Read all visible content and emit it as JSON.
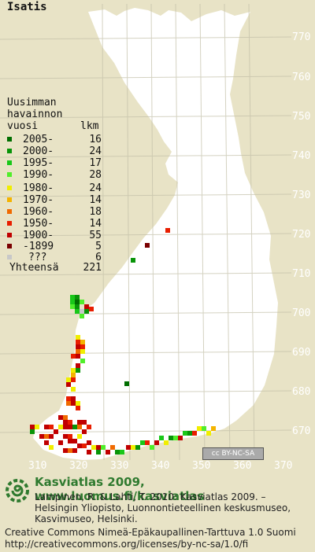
{
  "species": "Isatis",
  "map": {
    "latitude_labels": [
      "770",
      "760",
      "750",
      "740",
      "730",
      "720",
      "710",
      "700",
      "690",
      "680",
      "670"
    ],
    "longitude_labels": [
      "310",
      "320",
      "330",
      "340",
      "350",
      "360",
      "370"
    ]
  },
  "legend": {
    "title_lines": [
      "Uusimman",
      "havainnon",
      "vuosi"
    ],
    "count_header": "lkm",
    "rows": [
      {
        "period": "2005-",
        "count": "16",
        "color": "#006e00"
      },
      {
        "period": "2000-",
        "count": "24",
        "color": "#089408"
      },
      {
        "period": "1995-",
        "count": "17",
        "color": "#19c819"
      },
      {
        "period": "1990-",
        "count": "28",
        "color": "#50ee2a"
      },
      {
        "period": "1980-",
        "count": "24",
        "color": "#f0ee00"
      },
      {
        "period": "1970-",
        "count": "14",
        "color": "#f4b400"
      },
      {
        "period": "1960-",
        "count": "18",
        "color": "#f06a00"
      },
      {
        "period": "1950-",
        "count": "14",
        "color": "#e81e00"
      },
      {
        "period": "1900-",
        "count": "55",
        "color": "#c00000"
      },
      {
        "period": "-1899",
        "count": "5",
        "color": "#7a0000"
      },
      {
        "period": "???",
        "count": "6",
        "color": "#c8c8c8"
      }
    ],
    "total_label": "Yhteensä",
    "total_count": "221"
  },
  "license_badge": "cc BY-NC-SA",
  "footer": {
    "title": "Kasviatlas 2009, www.luomus.fi/kasviatlas",
    "citation_lines": [
      "Lampinen, R. & Lahti, T. 2010: Kasviatlas 2009. –",
      "Helsingin Yliopisto, Luonnontieteellinen keskusmuseo,",
      "Kasvimuseo, Helsinki."
    ],
    "license_lines": [
      "Creative Commons Nimeä-Epäkaupallinen-Tarttuva 1.0 Suomi",
      "http://creativecommons.org/licenses/by-nc-sa/1.0/fi"
    ]
  }
}
